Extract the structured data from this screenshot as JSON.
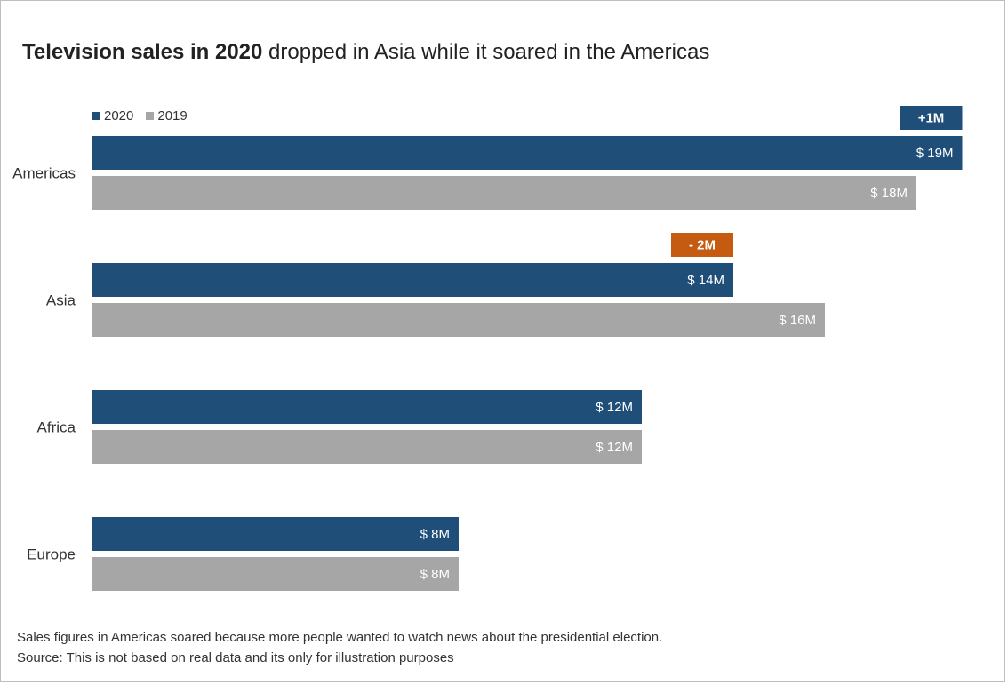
{
  "title": {
    "bold": "Television sales in 2020",
    "rest": " dropped in Asia while it soared in the Americas"
  },
  "colors": {
    "series_2020": "#1f4e79",
    "series_2019": "#a6a6a6",
    "increase": "#1f4e79",
    "decrease": "#c55a11"
  },
  "chart_data": {
    "type": "bar",
    "orientation": "horizontal",
    "title": "Television sales in 2020 dropped in Asia while it soared in the Americas",
    "categories": [
      "Americas",
      "Asia",
      "Africa",
      "Europe"
    ],
    "series": [
      {
        "name": "2020",
        "values": [
          19,
          14,
          12,
          8
        ],
        "labels": [
          "$ 19M",
          "$ 14M",
          "$ 12M",
          "$ 8M"
        ]
      },
      {
        "name": "2019",
        "values": [
          18,
          16,
          12,
          8
        ],
        "labels": [
          "$ 18M",
          "$ 16M",
          "$ 12M",
          "$ 8M"
        ]
      }
    ],
    "changes": [
      {
        "category": "Americas",
        "label": "+1M",
        "direction": "up"
      },
      {
        "category": "Asia",
        "label": "- 2M",
        "direction": "down"
      }
    ],
    "unit": "$ millions",
    "xlim": [
      0,
      19
    ],
    "legend": "top-left",
    "grid": false
  },
  "footnotes": [
    "Sales figures in Americas soared because more people wanted to watch news about the presidential election.",
    "Source: This is not based on real data and its only for illustration purposes"
  ]
}
